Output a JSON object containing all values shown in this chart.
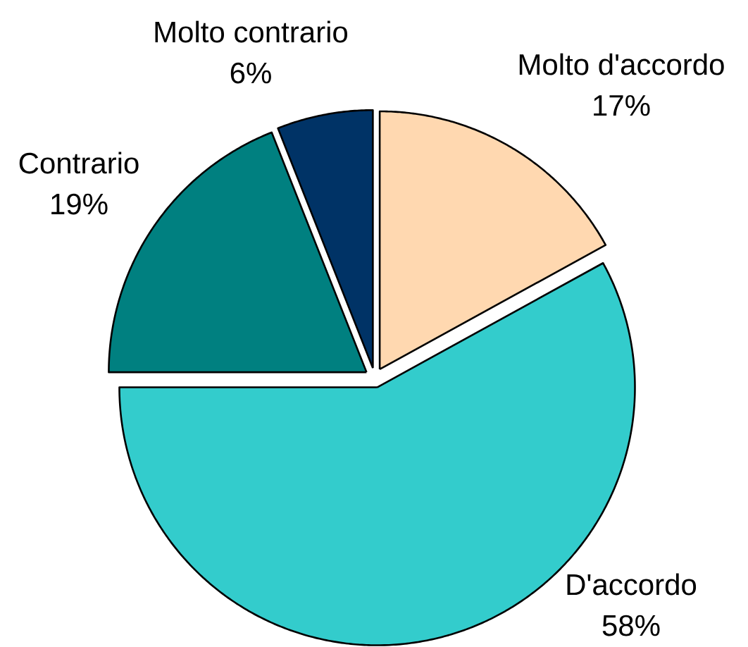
{
  "chart_data": {
    "type": "pie",
    "categories": [
      "Molto d'accordo",
      "D'accordo",
      "Contrario",
      "Molto contrario"
    ],
    "values": [
      17,
      58,
      19,
      6
    ],
    "value_labels": [
      "17%",
      "58%",
      "19%",
      "6%"
    ],
    "colors": [
      "#FFD8B0",
      "#33CCCC",
      "#008080",
      "#003366"
    ]
  }
}
